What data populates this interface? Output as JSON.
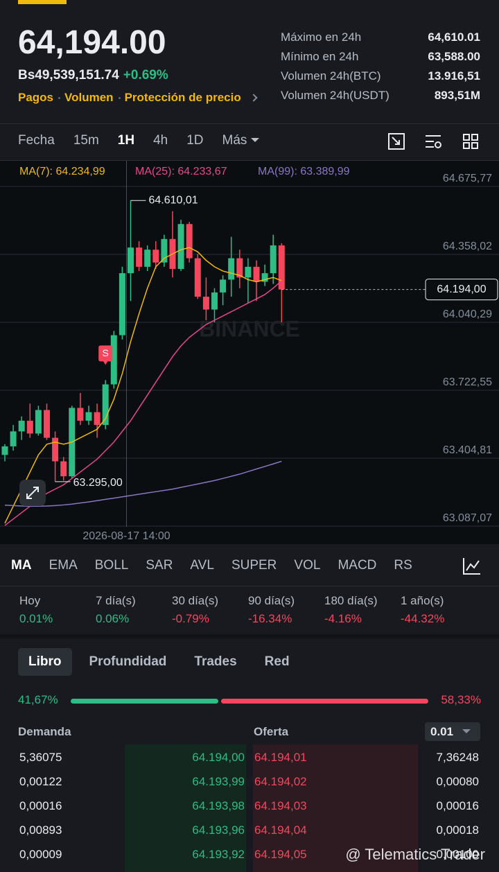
{
  "header": {
    "price": "64,194.00",
    "fiat": "Bs49,539,151.74",
    "change": "+0.69%",
    "links": [
      "Pagos",
      "Volumen",
      "Protección de precio"
    ],
    "stats": [
      {
        "label": "Máximo en 24h",
        "value": "64,610.01"
      },
      {
        "label": "Mínimo en 24h",
        "value": "63,588.00"
      },
      {
        "label": "Volumen 24h(BTC)",
        "value": "13.916,51"
      },
      {
        "label": "Volumen 24h(USDT)",
        "value": "893,51M"
      }
    ]
  },
  "intervals": {
    "items": [
      "Fecha",
      "15m",
      "1H",
      "4h",
      "1D",
      "Más"
    ],
    "active": 2
  },
  "chart_data": {
    "type": "candlestick",
    "up_color": "#2ebd85",
    "down_color": "#f6465d",
    "watermark": "BINANCE",
    "ylim": [
      63002.6,
      64795.75
    ],
    "yticks": [
      {
        "value": 64675.77,
        "label": "64.675,77"
      },
      {
        "value": 64358.02,
        "label": "64.358,02"
      },
      {
        "value": 64040.29,
        "label": "64.040,29"
      },
      {
        "value": 63722.55,
        "label": "63.722,55"
      },
      {
        "value": 63404.81,
        "label": "63.404,81"
      },
      {
        "value": 63087.07,
        "label": "63.087,07"
      }
    ],
    "grid": true,
    "open": [
      63420,
      63460,
      63530,
      63580,
      63520,
      63630,
      63500,
      63390,
      63320,
      63640,
      63580,
      63620,
      63560,
      63750,
      63980,
      64270,
      64390,
      64300,
      64380,
      64320,
      64430,
      64290,
      64500,
      64340,
      64160,
      64100,
      64180,
      64240,
      64340,
      64250,
      64300,
      64230,
      64270,
      64400
    ],
    "high": [
      63470,
      63560,
      63600,
      63660,
      63650,
      63660,
      63530,
      63410,
      63650,
      63710,
      63650,
      63660,
      63770,
      64000,
      64300,
      64610.01,
      64420,
      64400,
      64420,
      64450,
      64560,
      64520,
      64510,
      64360,
      64250,
      64200,
      64260,
      64440,
      64380,
      64340,
      64330,
      64310,
      64450,
      64410
    ],
    "low": [
      63390,
      63440,
      63490,
      63500,
      63510,
      63490,
      63295,
      63300,
      63310,
      63560,
      63560,
      63500,
      63540,
      63730,
      63960,
      64140,
      64280,
      64280,
      64290,
      64300,
      64250,
      64280,
      64320,
      64150,
      64050,
      64040,
      64120,
      64160,
      64200,
      64130,
      64140,
      64210,
      64220,
      64040
    ],
    "close": [
      63460,
      63530,
      63580,
      63520,
      63630,
      63500,
      63390,
      63320,
      63640,
      63580,
      63620,
      63560,
      63750,
      63980,
      64270,
      64390,
      64300,
      64380,
      64320,
      64430,
      64290,
      64500,
      64340,
      64160,
      64100,
      64180,
      64240,
      64340,
      64250,
      64300,
      64230,
      64270,
      64400,
      64194
    ],
    "series": [
      {
        "legend": "MA(7): 64.234,99",
        "color": "#f0b90b",
        "values": [
          63100,
          63180,
          63260,
          63340,
          63420,
          63470,
          63480,
          63470,
          63480,
          63500,
          63520,
          63540,
          63590,
          63680,
          63800,
          63950,
          64080,
          64200,
          64300,
          64340,
          64360,
          64380,
          64390,
          64370,
          64330,
          64300,
          64280,
          64270,
          64260,
          64240,
          64230,
          64240,
          64250,
          64235
        ]
      },
      {
        "legend": "MA(25): 64.233,67",
        "color": "#e5488d",
        "values": [
          63090,
          63120,
          63150,
          63180,
          63210,
          63240,
          63260,
          63280,
          63310,
          63340,
          63370,
          63400,
          63440,
          63480,
          63530,
          63580,
          63640,
          63700,
          63760,
          63820,
          63880,
          63930,
          63970,
          64000,
          64030,
          64050,
          64070,
          64090,
          64110,
          64130,
          64150,
          64170,
          64200,
          64234
        ]
      },
      {
        "legend": "MA(99): 63.389,99",
        "color": "#8a76c7",
        "values": [
          63185,
          63183,
          63181,
          63180,
          63180,
          63181,
          63183,
          63186,
          63190,
          63195,
          63200,
          63206,
          63212,
          63218,
          63224,
          63230,
          63236,
          63242,
          63248,
          63254,
          63260,
          63268,
          63276,
          63284,
          63292,
          63300,
          63310,
          63320,
          63330,
          63342,
          63354,
          63366,
          63378,
          63390
        ]
      }
    ],
    "max_label": "64.610,01",
    "min_label": "63.295,00",
    "marker": "S",
    "current_price": {
      "value": 64194,
      "label": "64.194,00"
    },
    "x_label": "2026-08-17 14:00"
  },
  "indicators": {
    "items": [
      "MA",
      "EMA",
      "BOLL",
      "SAR",
      "AVL",
      "SUPER",
      "VOL",
      "MACD",
      "RS"
    ],
    "active": 0
  },
  "performance": [
    {
      "period": "Hoy",
      "change": "0.01%",
      "up": true
    },
    {
      "period": "7 día(s)",
      "change": "0.06%",
      "up": true
    },
    {
      "period": "30 día(s)",
      "change": "-0.79%",
      "up": false
    },
    {
      "period": "90 día(s)",
      "change": "-16.34%",
      "up": false
    },
    {
      "period": "180 día(s)",
      "change": "-4.16%",
      "up": false
    },
    {
      "period": "1 año(s)",
      "change": "-44.32%",
      "up": false
    }
  ],
  "book_tabs": {
    "items": [
      "Libro",
      "Profundidad",
      "Trades",
      "Red"
    ],
    "active": 0
  },
  "ratio": {
    "bid": 41.67,
    "bid_label": "41,67%",
    "ask": 58.33,
    "ask_label": "58,33%"
  },
  "book": {
    "bid_header": "Demanda",
    "ask_header": "Oferta",
    "precision": "0.01",
    "rows": [
      [
        "5,36075",
        "64.194,00",
        "64.194,01",
        "7,36248"
      ],
      [
        "0,00122",
        "64.193,99",
        "64.194,02",
        "0,00080"
      ],
      [
        "0,00016",
        "64.193,98",
        "64.194,03",
        "0,00016"
      ],
      [
        "0,00893",
        "64.193,96",
        "64.194,04",
        "0,00018"
      ],
      [
        "0,00009",
        "64.193,92",
        "64.194,05",
        "0,00100"
      ]
    ]
  },
  "footer_watermark": "@ Telematics Trader"
}
